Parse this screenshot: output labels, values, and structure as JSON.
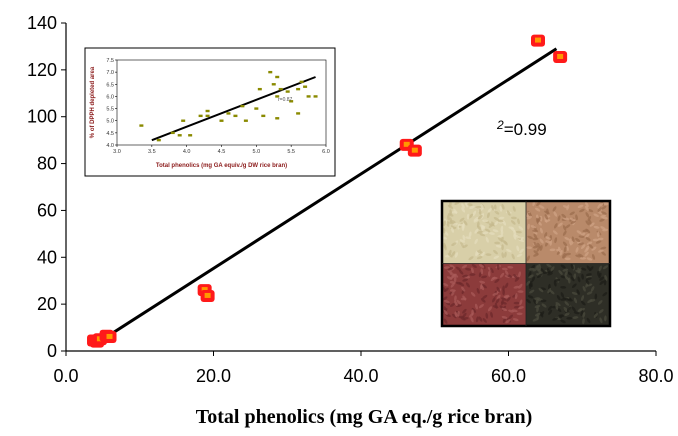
{
  "chart_data": [
    {
      "type": "scatter",
      "title": "",
      "xlabel": "Total phenolics (mg GA eq./g rice bran)",
      "ylabel": "",
      "xlim": [
        0,
        80
      ],
      "ylim": [
        0,
        140
      ],
      "x_ticks": [
        "0.0",
        "20.0",
        "40.0",
        "60.0",
        "80.0"
      ],
      "y_ticks": [
        "0",
        "20",
        "40",
        "60",
        "80",
        "100",
        "120",
        "140"
      ],
      "grid": false,
      "annotation": {
        "sup": "2",
        "text": "=0.99"
      },
      "series": [
        {
          "points": [
            {
              "x": 3.8,
              "y": 4.5
            },
            {
              "x": 4.2,
              "y": 4.0
            },
            {
              "x": 4.6,
              "y": 5.0
            },
            {
              "x": 5.5,
              "y": 6.5
            },
            {
              "x": 5.9,
              "y": 6.0
            },
            {
              "x": 18.8,
              "y": 26.0
            },
            {
              "x": 19.2,
              "y": 23.5
            },
            {
              "x": 46.2,
              "y": 88.0
            },
            {
              "x": 47.3,
              "y": 85.5
            },
            {
              "x": 64.0,
              "y": 132.5
            },
            {
              "x": 67.0,
              "y": 125.5
            }
          ],
          "color": "#ff1a1a",
          "inner_color": "#ff9900"
        }
      ],
      "trendline": {
        "x": [
          4.0,
          66.5
        ],
        "y": [
          3.0,
          129.0
        ],
        "color": "#000000"
      }
    },
    {
      "type": "scatter",
      "title": "",
      "xlabel": "Total phenolics (mg GA equiv./g DW rice bran)",
      "ylabel": "% of DPPH depleted area",
      "xlim": [
        3.0,
        6.0
      ],
      "ylim": [
        4.0,
        7.5
      ],
      "x_ticks": [
        "3.0",
        "3.5",
        "4.0",
        "4.5",
        "5.0",
        "5.5",
        "6.0"
      ],
      "y_ticks": [
        "4.0",
        "4.5",
        "5.0",
        "5.5",
        "6.0",
        "6.5",
        "7.0",
        "7.5"
      ],
      "annotation": {
        "text": "r=0.87"
      },
      "series": [
        {
          "points": [
            {
              "x": 3.35,
              "y": 4.8
            },
            {
              "x": 3.6,
              "y": 4.2
            },
            {
              "x": 3.8,
              "y": 4.5
            },
            {
              "x": 3.9,
              "y": 4.4
            },
            {
              "x": 3.95,
              "y": 5.0
            },
            {
              "x": 4.05,
              "y": 4.4
            },
            {
              "x": 4.2,
              "y": 5.2
            },
            {
              "x": 4.3,
              "y": 5.2
            },
            {
              "x": 4.3,
              "y": 5.4
            },
            {
              "x": 4.5,
              "y": 5.0
            },
            {
              "x": 4.6,
              "y": 5.3
            },
            {
              "x": 4.7,
              "y": 5.2
            },
            {
              "x": 4.8,
              "y": 5.6
            },
            {
              "x": 4.85,
              "y": 5.0
            },
            {
              "x": 5.0,
              "y": 5.5
            },
            {
              "x": 5.05,
              "y": 6.3
            },
            {
              "x": 5.1,
              "y": 5.2
            },
            {
              "x": 5.2,
              "y": 7.0
            },
            {
              "x": 5.25,
              "y": 6.5
            },
            {
              "x": 5.3,
              "y": 6.8
            },
            {
              "x": 5.3,
              "y": 6.0
            },
            {
              "x": 5.35,
              "y": 6.3
            },
            {
              "x": 5.3,
              "y": 5.1
            },
            {
              "x": 5.45,
              "y": 6.2
            },
            {
              "x": 5.5,
              "y": 5.8
            },
            {
              "x": 5.6,
              "y": 6.3
            },
            {
              "x": 5.65,
              "y": 6.6
            },
            {
              "x": 5.6,
              "y": 5.3
            },
            {
              "x": 5.75,
              "y": 6.0
            },
            {
              "x": 5.85,
              "y": 6.0
            },
            {
              "x": 5.7,
              "y": 6.4
            }
          ],
          "color": "#8a8a00"
        }
      ],
      "trendline": {
        "x": [
          3.5,
          5.85
        ],
        "y": [
          4.2,
          6.8
        ],
        "color": "#000000"
      }
    }
  ],
  "photo": {
    "cells": [
      {
        "name": "white rice bran",
        "colors": [
          "#d8cfa8",
          "#c6b98e",
          "#e4dcbc"
        ]
      },
      {
        "name": "brown rice bran",
        "colors": [
          "#b98a6a",
          "#9c6d4f",
          "#cfa184"
        ]
      },
      {
        "name": "red rice bran",
        "colors": [
          "#8c3b3b",
          "#a85a58",
          "#6e2a2c"
        ]
      },
      {
        "name": "black rice bran",
        "colors": [
          "#2e2e26",
          "#4a4a3c",
          "#1e1e18"
        ]
      }
    ],
    "border_color": "#000000"
  }
}
